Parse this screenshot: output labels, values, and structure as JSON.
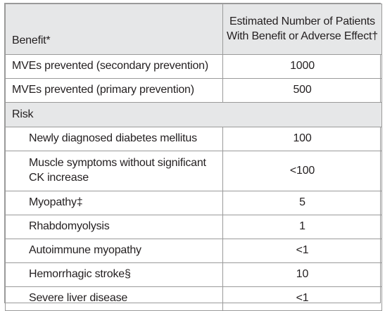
{
  "header": {
    "benefit": "Benefit*",
    "estimate_line1": "Estimated Number of Patients",
    "estimate_line2": "With Benefit or Adverse Effect†"
  },
  "benefits": [
    {
      "label": "MVEs prevented (secondary prevention)",
      "value": "1000"
    },
    {
      "label": "MVEs prevented (primary prevention)",
      "value": "500"
    }
  ],
  "risk_section": "Risk",
  "risks": [
    {
      "label": "Newly diagnosed diabetes mellitus",
      "value": "100"
    },
    {
      "label_line1": "Muscle symptoms without significant",
      "label_line2": "CK increase",
      "value": "<100"
    },
    {
      "label": "Myopathy‡",
      "value": "5"
    },
    {
      "label": "Rhabdomyolysis",
      "value": "1"
    },
    {
      "label": "Autoimmune myopathy",
      "value": "<1"
    },
    {
      "label": "Hemorrhagic stroke§",
      "value": "10"
    },
    {
      "label": "Severe liver disease",
      "value": "<1"
    }
  ]
}
